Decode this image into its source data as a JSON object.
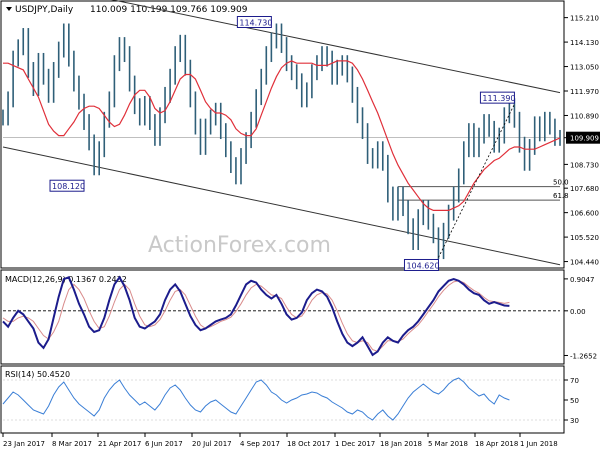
{
  "header": {
    "symbol_label": "USDJPY,Daily",
    "ohlc_label": "110.009 110.199 109.766 109.909"
  },
  "watermark": "ActionForex.com",
  "colors": {
    "price": "#2f5f78",
    "ma": "#e0303a",
    "macd": "#1c1c8c",
    "signal": "#d98c8c",
    "rsi": "#3b7fd6",
    "channel": "#333333",
    "fib": "#555555",
    "watermark": "#c9c9c9"
  },
  "chart_data": [
    {
      "type": "line",
      "panel": "price",
      "title": "USDJPY,Daily",
      "subtitle": "110.009 110.199 109.766 109.909",
      "ylim": [
        104.2,
        115.9
      ],
      "yticks": [
        "115.210",
        "114.130",
        "113.050",
        "111.970",
        "110.890",
        "109.909",
        "108.730",
        "107.680",
        "106.600",
        "105.520",
        "104.440"
      ],
      "current_price": "109.909",
      "series": [
        {
          "role": "close",
          "values": [
            110.8,
            111.6,
            113.4,
            113.9,
            114.4,
            112.9,
            112.1,
            113.3,
            112.6,
            111.8,
            112.9,
            113.8,
            114.6,
            113.4,
            112.3,
            111.5,
            110.6,
            109.7,
            108.6,
            109.4,
            110.7,
            111.6,
            113.2,
            114.0,
            113.6,
            112.3,
            111.3,
            110.8,
            111.4,
            110.6,
            109.9,
            110.9,
            111.8,
            112.6,
            113.6,
            114.1,
            113.0,
            111.6,
            110.4,
            109.5,
            110.4,
            110.8,
            111.1,
            110.2,
            109.4,
            108.7,
            108.2,
            109.1,
            109.8,
            110.7,
            111.7,
            112.6,
            113.6,
            114.2,
            114.6,
            114.0,
            113.2,
            112.8,
            112.4,
            111.6,
            112.0,
            112.8,
            113.2,
            113.6,
            113.4,
            112.6,
            113.0,
            113.2,
            112.7,
            111.8,
            110.9,
            110.2,
            109.1,
            108.9,
            109.4,
            108.8,
            107.4,
            106.6,
            107.4,
            106.8,
            106.0,
            105.3,
            106.4,
            106.8,
            106.2,
            105.6,
            104.9,
            105.8,
            106.6,
            107.4,
            108.2,
            109.4,
            110.2,
            109.4,
            110.0,
            110.6,
            110.3,
            109.6,
            110.0,
            110.9,
            111.3,
            110.7,
            109.6,
            108.8,
            109.5,
            110.5,
            110.1,
            110.7,
            110.4,
            109.9,
            109.9
          ]
        },
        {
          "role": "moving-average",
          "values": [
            113.2,
            113.2,
            113.1,
            113.0,
            112.9,
            112.5,
            112.1,
            111.7,
            111.1,
            110.5,
            110.2,
            110.0,
            110.0,
            110.3,
            110.6,
            111.0,
            111.2,
            111.3,
            111.3,
            111.2,
            110.9,
            110.6,
            110.4,
            110.5,
            110.9,
            111.4,
            111.8,
            112.0,
            112.0,
            111.7,
            111.2,
            111.0,
            111.1,
            111.5,
            112.0,
            112.5,
            112.7,
            112.7,
            112.5,
            112.0,
            111.5,
            111.2,
            111.0,
            111.0,
            110.9,
            110.7,
            110.3,
            110.1,
            110.0,
            110.0,
            110.3,
            110.9,
            111.5,
            112.1,
            112.6,
            113.0,
            113.2,
            113.3,
            113.2,
            113.2,
            113.2,
            113.2,
            113.1,
            113.1,
            113.1,
            113.2,
            113.3,
            113.3,
            113.3,
            113.2,
            112.9,
            112.5,
            112.0,
            111.5,
            111.0,
            110.4,
            109.8,
            109.2,
            108.7,
            108.3,
            107.9,
            107.6,
            107.3,
            107.0,
            106.8,
            106.7,
            106.7,
            106.7,
            106.7,
            106.8,
            106.9,
            107.1,
            107.5,
            107.9,
            108.2,
            108.5,
            108.7,
            108.9,
            109.0,
            109.2,
            109.4,
            109.5,
            109.5,
            109.4,
            109.4,
            109.4,
            109.5,
            109.6,
            109.7,
            109.8,
            109.9
          ]
        }
      ],
      "channel_upper": {
        "start": 117.0,
        "end": 111.9
      },
      "channel_lower": {
        "start": 109.5,
        "end": 104.3
      },
      "fib_levels": [
        {
          "label": "50.0",
          "value": 107.75
        },
        {
          "label": "61.8",
          "value": 107.15
        }
      ],
      "annotations": [
        {
          "label": "114.730",
          "x_index": 53
        },
        {
          "label": "108.120",
          "x_index": 16
        },
        {
          "label": "104.620",
          "x_index": 86
        },
        {
          "label": "111.390",
          "x_index": 101
        }
      ]
    },
    {
      "type": "line",
      "panel": "macd",
      "title": "MACD(12,26,9) 0.1367 0.2432",
      "ylim": [
        -1.45,
        1.1
      ],
      "yticks": [
        "0.9047",
        "0.00",
        "-1.2652"
      ],
      "series": [
        {
          "role": "macd",
          "values": [
            -0.3,
            -0.45,
            -0.2,
            0.0,
            -0.1,
            -0.3,
            -0.5,
            -0.9,
            -1.05,
            -0.8,
            -0.2,
            0.4,
            0.9,
            0.95,
            0.6,
            0.2,
            -0.1,
            -0.45,
            -0.6,
            -0.55,
            -0.2,
            0.3,
            0.75,
            0.95,
            0.7,
            0.3,
            -0.2,
            -0.45,
            -0.5,
            -0.4,
            -0.3,
            -0.1,
            0.3,
            0.6,
            0.75,
            0.55,
            0.2,
            -0.15,
            -0.4,
            -0.55,
            -0.5,
            -0.4,
            -0.3,
            -0.25,
            -0.2,
            -0.1,
            0.15,
            0.45,
            0.75,
            0.85,
            0.8,
            0.6,
            0.45,
            0.35,
            0.45,
            0.2,
            -0.1,
            -0.25,
            -0.2,
            -0.05,
            0.3,
            0.5,
            0.6,
            0.55,
            0.4,
            0.1,
            -0.3,
            -0.65,
            -0.9,
            -1.0,
            -0.9,
            -0.75,
            -1.0,
            -1.25,
            -1.15,
            -0.9,
            -0.75,
            -0.85,
            -0.9,
            -0.7,
            -0.55,
            -0.45,
            -0.3,
            -0.1,
            0.1,
            0.3,
            0.55,
            0.7,
            0.85,
            0.9,
            0.85,
            0.75,
            0.6,
            0.5,
            0.45,
            0.3,
            0.2,
            0.25,
            0.2,
            0.15,
            0.14
          ]
        },
        {
          "role": "signal",
          "values": [
            -0.2,
            -0.3,
            -0.3,
            -0.2,
            -0.15,
            -0.2,
            -0.3,
            -0.5,
            -0.7,
            -0.8,
            -0.6,
            -0.3,
            0.2,
            0.6,
            0.75,
            0.6,
            0.35,
            0.0,
            -0.3,
            -0.5,
            -0.45,
            -0.15,
            0.25,
            0.6,
            0.75,
            0.6,
            0.2,
            -0.15,
            -0.4,
            -0.45,
            -0.4,
            -0.25,
            0.0,
            0.3,
            0.55,
            0.6,
            0.45,
            0.15,
            -0.15,
            -0.4,
            -0.5,
            -0.45,
            -0.38,
            -0.3,
            -0.25,
            -0.18,
            -0.02,
            0.2,
            0.45,
            0.65,
            0.75,
            0.7,
            0.58,
            0.45,
            0.42,
            0.35,
            0.1,
            -0.1,
            -0.2,
            -0.15,
            0.05,
            0.3,
            0.45,
            0.52,
            0.48,
            0.3,
            0.0,
            -0.35,
            -0.65,
            -0.85,
            -0.9,
            -0.85,
            -0.9,
            -1.1,
            -1.15,
            -1.0,
            -0.85,
            -0.85,
            -0.87,
            -0.8,
            -0.65,
            -0.52,
            -0.4,
            -0.22,
            -0.02,
            0.18,
            0.4,
            0.58,
            0.72,
            0.82,
            0.85,
            0.8,
            0.68,
            0.58,
            0.5,
            0.38,
            0.28,
            0.26,
            0.24,
            0.21,
            0.24
          ]
        }
      ]
    },
    {
      "type": "line",
      "panel": "rsi",
      "title": "RSI(14) 50.4520",
      "ylim": [
        18,
        82
      ],
      "yticks": [
        "70",
        "50",
        "30"
      ],
      "series": [
        {
          "role": "rsi",
          "values": [
            46,
            52,
            58,
            55,
            50,
            45,
            40,
            38,
            36,
            44,
            55,
            63,
            68,
            60,
            52,
            46,
            42,
            38,
            34,
            40,
            52,
            60,
            66,
            70,
            62,
            55,
            50,
            45,
            48,
            44,
            40,
            46,
            55,
            62,
            65,
            60,
            52,
            45,
            40,
            38,
            44,
            48,
            50,
            46,
            42,
            38,
            36,
            44,
            52,
            60,
            68,
            70,
            65,
            58,
            55,
            50,
            47,
            50,
            52,
            55,
            56,
            58,
            57,
            54,
            52,
            48,
            45,
            42,
            38,
            36,
            40,
            38,
            33,
            30,
            36,
            40,
            34,
            30,
            36,
            44,
            52,
            58,
            62,
            66,
            62,
            58,
            56,
            60,
            66,
            70,
            72,
            68,
            62,
            58,
            54,
            56,
            50,
            46,
            55,
            52,
            50
          ]
        }
      ]
    }
  ],
  "x_axis": {
    "labels": [
      "23 Jan 2017",
      "8 Mar 2017",
      "21 Apr 2017",
      "6 Jun 2017",
      "20 Jul 2017",
      "4 Sep 2017",
      "18 Oct 2017",
      "1 Dec 2017",
      "18 Jan 2018",
      "5 Mar 2018",
      "18 Apr 2018",
      "1 Jun 2018"
    ]
  }
}
